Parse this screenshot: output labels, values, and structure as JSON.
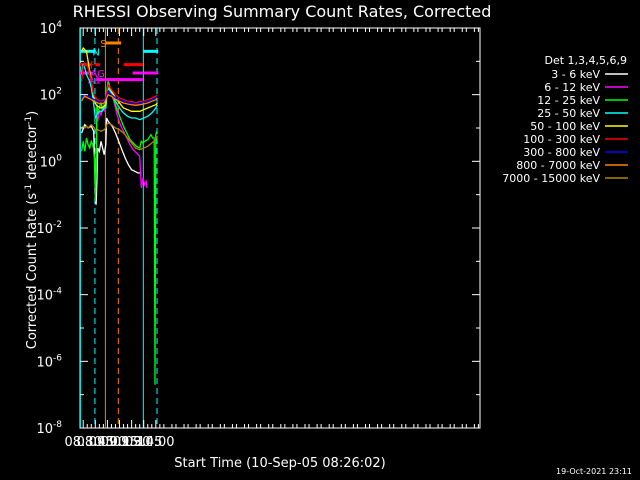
{
  "chart_data": {
    "type": "line",
    "title": "RHESSI Observing Summary Count Rates, Corrected",
    "xlabel": "Start Time (10-Sep-05 08:26:02)",
    "ylabel_main": "Corrected Count Rate (s",
    "ylabel_sup1": "-1",
    "ylabel_mid": " detector",
    "ylabel_sup2": "-1",
    "ylabel_end": ")",
    "yscale": "log",
    "xlim_min": [
      506,
      1002
    ],
    "ylim_exp": [
      -8,
      4
    ],
    "x_ticks": [
      {
        "min": 510,
        "label": "08:30"
      },
      {
        "min": 525,
        "label": "08:45"
      },
      {
        "min": 540,
        "label": "09:00"
      },
      {
        "min": 555,
        "label": "09:15"
      },
      {
        "min": 570,
        "label": "09:30"
      },
      {
        "min": 585,
        "label": "09:45"
      },
      {
        "min": 600,
        "label": "10:00"
      }
    ],
    "y_ticks": [
      {
        "exp": 4,
        "label": "10",
        "sup": "4"
      },
      {
        "exp": 2,
        "label": "10",
        "sup": "2"
      },
      {
        "exp": 0,
        "label": "10",
        "sup": "0"
      },
      {
        "exp": -2,
        "label": "10",
        "sup": "-2"
      },
      {
        "exp": -4,
        "label": "10",
        "sup": "-4"
      },
      {
        "exp": -6,
        "label": "10",
        "sup": "-6"
      },
      {
        "exp": -8,
        "label": "10",
        "sup": "-8"
      }
    ],
    "legend_title": "Det 1,3,4,5,6,9",
    "series": [
      {
        "name": "3 - 6 keV",
        "color": "#ffffff",
        "points": [
          [
            508,
            0.85
          ],
          [
            512,
            1.1
          ],
          [
            516,
            1.0
          ],
          [
            520,
            1.05
          ],
          [
            523,
            0.9
          ],
          [
            525,
            -0.7
          ],
          [
            526,
            -1.3
          ],
          [
            527,
            -0.6
          ],
          [
            528,
            0.4
          ],
          [
            530,
            0.3
          ],
          [
            532,
            0.6
          ],
          [
            534,
            0.4
          ],
          [
            536,
            0.2
          ],
          [
            538,
            0.5
          ],
          [
            539,
            1.3
          ],
          [
            541,
            1.2
          ],
          [
            546,
            1.05
          ],
          [
            550,
            0.85
          ],
          [
            554,
            0.6
          ],
          [
            558,
            0.35
          ],
          [
            562,
            0.1
          ],
          [
            566,
            -0.1
          ],
          [
            570,
            -0.25
          ],
          [
            574,
            -0.3
          ],
          [
            578,
            -0.35
          ],
          [
            582,
            -0.35
          ]
        ]
      },
      {
        "name": "6 - 12 keV",
        "color": "#ff00ff",
        "points": [
          [
            524,
            -0.8
          ],
          [
            525,
            -1.0
          ],
          [
            526,
            -0.5
          ],
          [
            527,
            1.4
          ],
          [
            528,
            1.2
          ],
          [
            530,
            1.5
          ],
          [
            532,
            1.4
          ],
          [
            534,
            1.6
          ],
          [
            537,
            1.5
          ],
          [
            539,
            2.0
          ],
          [
            541,
            2.4
          ],
          [
            544,
            2.1
          ],
          [
            548,
            1.8
          ],
          [
            552,
            1.4
          ],
          [
            556,
            1.1
          ],
          [
            560,
            0.9
          ],
          [
            564,
            0.7
          ],
          [
            568,
            0.5
          ],
          [
            572,
            0.35
          ],
          [
            576,
            0.25
          ],
          [
            580,
            0.15
          ],
          [
            582,
            -0.8
          ],
          [
            584,
            -0.5
          ],
          [
            586,
            -0.7
          ],
          [
            588,
            -0.6
          ],
          [
            589,
            -0.8
          ]
        ]
      },
      {
        "name": "12 - 25 keV",
        "color": "#00ff00",
        "points": [
          [
            508,
            0.3
          ],
          [
            510,
            0.6
          ],
          [
            512,
            0.3
          ],
          [
            514,
            0.7
          ],
          [
            516,
            0.5
          ],
          [
            518,
            0.4
          ],
          [
            520,
            0.6
          ],
          [
            522,
            0.5
          ],
          [
            524,
            0.1
          ],
          [
            525,
            -1.2
          ],
          [
            526,
            -0.4
          ],
          [
            527,
            1.7
          ],
          [
            528,
            1.5
          ],
          [
            530,
            1.6
          ],
          [
            532,
            1.8
          ],
          [
            534,
            1.5
          ],
          [
            536,
            1.7
          ],
          [
            538,
            1.6
          ],
          [
            539,
            2.1
          ],
          [
            541,
            2.4
          ],
          [
            544,
            2.15
          ],
          [
            548,
            1.85
          ],
          [
            552,
            1.55
          ],
          [
            556,
            1.3
          ],
          [
            560,
            1.05
          ],
          [
            564,
            0.85
          ],
          [
            568,
            0.65
          ],
          [
            572,
            0.55
          ],
          [
            576,
            0.45
          ],
          [
            580,
            0.4
          ],
          [
            582,
            0.6
          ],
          [
            584,
            0.55
          ],
          [
            586,
            0.6
          ],
          [
            590,
            0.65
          ],
          [
            594,
            0.8
          ],
          [
            596,
            0.7
          ],
          [
            598,
            0.7
          ],
          [
            599,
            -6.7
          ],
          [
            600,
            0.8
          ],
          [
            601,
            0.9
          ]
        ]
      },
      {
        "name": "25 - 50 keV",
        "color": "#00ffff",
        "points": [
          [
            508,
            2.6
          ],
          [
            509,
            2.8
          ],
          [
            510,
            2.9
          ],
          [
            512,
            2.8
          ],
          [
            514,
            2.6
          ],
          [
            516,
            2.5
          ],
          [
            518,
            2.4
          ],
          [
            520,
            2.2
          ],
          [
            522,
            1.9
          ],
          [
            524,
            1.5
          ],
          [
            525,
            1.3
          ],
          [
            527,
            1.4
          ],
          [
            530,
            1.5
          ],
          [
            533,
            1.5
          ],
          [
            536,
            1.6
          ],
          [
            538,
            1.6
          ],
          [
            539,
            1.9
          ],
          [
            541,
            2.2
          ],
          [
            545,
            2.05
          ],
          [
            550,
            1.8
          ],
          [
            555,
            1.6
          ],
          [
            560,
            1.45
          ],
          [
            565,
            1.35
          ],
          [
            570,
            1.3
          ],
          [
            575,
            1.3
          ],
          [
            580,
            1.25
          ],
          [
            585,
            1.3
          ],
          [
            590,
            1.35
          ],
          [
            595,
            1.45
          ],
          [
            600,
            1.6
          ],
          [
            602,
            1.7
          ]
        ]
      },
      {
        "name": "50 - 100 keV",
        "color": "#ffff00",
        "points": [
          [
            508,
            3.3
          ],
          [
            510,
            3.4
          ],
          [
            512,
            3.35
          ],
          [
            514,
            3.3
          ],
          [
            516,
            3.0
          ],
          [
            518,
            2.7
          ],
          [
            520,
            2.4
          ],
          [
            522,
            2.1
          ],
          [
            524,
            1.8
          ],
          [
            526,
            1.7
          ],
          [
            528,
            1.65
          ],
          [
            532,
            1.6
          ],
          [
            536,
            1.65
          ],
          [
            538,
            1.7
          ],
          [
            539,
            2.0
          ],
          [
            541,
            2.3
          ],
          [
            545,
            2.1
          ],
          [
            550,
            1.9
          ],
          [
            555,
            1.75
          ],
          [
            560,
            1.6
          ],
          [
            565,
            1.55
          ],
          [
            570,
            1.5
          ],
          [
            575,
            1.5
          ],
          [
            580,
            1.5
          ],
          [
            585,
            1.55
          ],
          [
            590,
            1.6
          ],
          [
            595,
            1.65
          ],
          [
            600,
            1.7
          ],
          [
            602,
            1.75
          ]
        ]
      },
      {
        "name": "100 - 300 keV",
        "color": "#ff0000",
        "points": [
          [
            508,
            2.4
          ],
          [
            509,
            2.6
          ],
          [
            510,
            2.85
          ],
          [
            512,
            2.95
          ],
          [
            514,
            2.9
          ],
          [
            516,
            2.8
          ],
          [
            518,
            2.6
          ],
          [
            520,
            2.4
          ],
          [
            522,
            2.1
          ],
          [
            524,
            1.95
          ],
          [
            526,
            1.9
          ],
          [
            528,
            1.85
          ],
          [
            532,
            1.8
          ],
          [
            536,
            1.85
          ],
          [
            538,
            1.9
          ],
          [
            539,
            2.05
          ],
          [
            541,
            2.3
          ],
          [
            545,
            2.15
          ],
          [
            550,
            2.0
          ],
          [
            555,
            1.9
          ],
          [
            560,
            1.85
          ],
          [
            565,
            1.8
          ],
          [
            570,
            1.8
          ],
          [
            575,
            1.75
          ],
          [
            580,
            1.8
          ],
          [
            585,
            1.8
          ],
          [
            590,
            1.85
          ],
          [
            595,
            1.9
          ],
          [
            600,
            1.95
          ],
          [
            602,
            2.0
          ]
        ]
      },
      {
        "name": "300 - 800 keV",
        "color": "#0000ff",
        "points": [
          [
            508,
            1.85
          ],
          [
            510,
            1.95
          ],
          [
            512,
            2.0
          ],
          [
            516,
            1.95
          ],
          [
            520,
            1.9
          ],
          [
            524,
            1.85
          ],
          [
            528,
            1.8
          ],
          [
            532,
            1.78
          ],
          [
            536,
            1.8
          ],
          [
            539,
            1.95
          ],
          [
            541,
            2.1
          ],
          [
            545,
            2.0
          ],
          [
            550,
            1.9
          ],
          [
            555,
            1.85
          ],
          [
            560,
            1.8
          ],
          [
            565,
            1.78
          ],
          [
            570,
            1.75
          ],
          [
            575,
            1.72
          ],
          [
            580,
            1.75
          ],
          [
            585,
            1.78
          ],
          [
            590,
            1.8
          ],
          [
            595,
            1.85
          ],
          [
            600,
            1.9
          ],
          [
            602,
            1.95
          ]
        ]
      },
      {
        "name": "800 - 7000 keV",
        "color": "#ff8000",
        "points": [
          [
            508,
            1.8
          ],
          [
            510,
            1.9
          ],
          [
            512,
            1.95
          ],
          [
            516,
            1.9
          ],
          [
            520,
            1.85
          ],
          [
            524,
            1.8
          ],
          [
            528,
            1.75
          ],
          [
            532,
            1.72
          ],
          [
            536,
            1.75
          ],
          [
            539,
            1.9
          ],
          [
            541,
            2.0
          ],
          [
            545,
            1.95
          ],
          [
            550,
            1.85
          ],
          [
            555,
            1.8
          ],
          [
            560,
            1.75
          ],
          [
            565,
            1.72
          ],
          [
            570,
            1.7
          ],
          [
            575,
            1.68
          ],
          [
            580,
            1.7
          ],
          [
            585,
            1.72
          ],
          [
            590,
            1.75
          ],
          [
            595,
            1.8
          ],
          [
            600,
            1.85
          ],
          [
            602,
            1.9
          ]
        ]
      },
      {
        "name": "7000 - 15000 keV",
        "color": "#aa8800",
        "points": [
          [
            508,
            1.0
          ],
          [
            510,
            1.05
          ],
          [
            512,
            1.0
          ],
          [
            514,
            1.05
          ],
          [
            516,
            1.0
          ],
          [
            518,
            1.05
          ],
          [
            520,
            1.1
          ],
          [
            522,
            1.05
          ],
          [
            524,
            1.0
          ],
          [
            526,
            0.9
          ],
          [
            528,
            0.95
          ],
          [
            532,
            0.9
          ],
          [
            536,
            0.95
          ],
          [
            538,
            1.0
          ],
          [
            539,
            1.1
          ],
          [
            541,
            1.15
          ],
          [
            545,
            1.1
          ],
          [
            550,
            1.0
          ],
          [
            555,
            0.95
          ],
          [
            560,
            0.85
          ],
          [
            565,
            0.7
          ],
          [
            570,
            0.55
          ],
          [
            575,
            0.4
          ],
          [
            580,
            0.35
          ],
          [
            585,
            0.4
          ],
          [
            590,
            0.45
          ],
          [
            595,
            0.55
          ],
          [
            600,
            0.65
          ],
          [
            602,
            0.75
          ]
        ]
      }
    ],
    "vlines": [
      {
        "min": 506.5,
        "color": "#00ffff",
        "style": "solid"
      },
      {
        "min": 524.5,
        "color": "#00ffff",
        "style": "dashed"
      },
      {
        "min": 537.5,
        "color": "#ff8000",
        "style": "solid"
      },
      {
        "min": 553.5,
        "color": "#ff8000",
        "style": "dashed"
      },
      {
        "min": 584.5,
        "color": "#00ffff",
        "style": "solid"
      },
      {
        "min": 601.5,
        "color": "#00ffff",
        "style": "dashed"
      }
    ],
    "flag_bars": [
      {
        "label": "N",
        "color": "#00ffff",
        "exp": 3.3,
        "start": 506,
        "end": 524.5,
        "label_min": 526
      },
      {
        "label": "N",
        "color": "#00ffff",
        "exp": 3.3,
        "start": 584.5,
        "end": 603,
        "label_min": null
      },
      {
        "label": "S",
        "color": "#ff8000",
        "exp": 3.55,
        "start": 538,
        "end": 557,
        "label_min": 535
      },
      {
        "label": "F",
        "color": "#ff0000",
        "exp": 2.9,
        "start": 506,
        "end": 521,
        "label_min": 522
      },
      {
        "label": "",
        "color": "#ff0000",
        "exp": 2.9,
        "start": 525,
        "end": 531,
        "label_min": null
      },
      {
        "label": "",
        "color": "#ff0000",
        "exp": 2.9,
        "start": 560,
        "end": 584,
        "label_min": null
      },
      {
        "label": "AG",
        "color": "#ff00ff",
        "exp": 2.65,
        "start": 506,
        "end": 522,
        "label_min": 528
      },
      {
        "label": "",
        "color": "#ff00ff",
        "exp": 2.65,
        "start": 584.5,
        "end": 603,
        "label_min": null
      },
      {
        "label": "A1",
        "color": "#ff00ff",
        "exp": 2.45,
        "start": 526,
        "end": 584,
        "label_min": 524
      }
    ],
    "flag_dots": {
      "color": "#ff00ff",
      "exp": 2.65,
      "mins": [
        573,
        576,
        579,
        582
      ]
    },
    "timestamp": "19-Oct-2021 23:11"
  }
}
